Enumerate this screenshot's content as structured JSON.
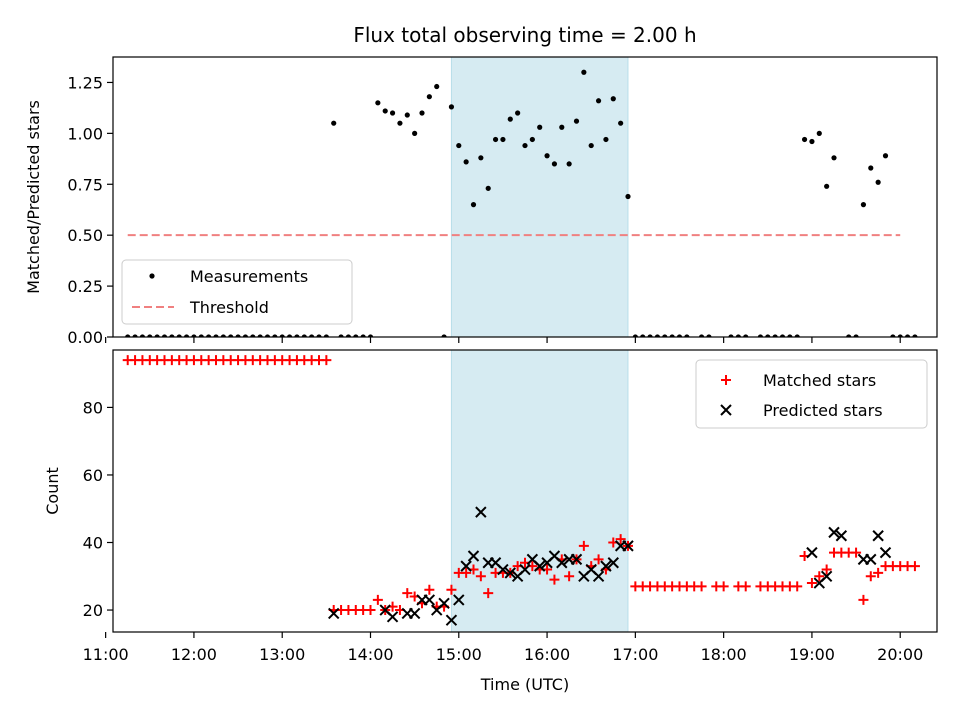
{
  "chart_data": [
    {
      "type": "scatter",
      "title": "Flux total observing time = 2.00 h",
      "xlabel": "",
      "ylabel": "Matched/Predicted stars",
      "xlim": [
        "11:05",
        "20:25"
      ],
      "ylim": [
        0,
        1.375
      ],
      "yticks": [
        0.0,
        0.25,
        0.5,
        0.75,
        1.0,
        1.25
      ],
      "ytick_labels": [
        "0.00",
        "0.25",
        "0.50",
        "0.75",
        "1.00",
        "1.25"
      ],
      "grid": false,
      "legend": "lower-left",
      "shaded_region": {
        "start": "14:55",
        "end": "16:55",
        "color": "#add8e6"
      },
      "series": [
        {
          "name": "Measurements",
          "kind": "points",
          "color": "#000000",
          "points": [
            [
              "11:15",
              0
            ],
            [
              "11:20",
              0
            ],
            [
              "11:25",
              0
            ],
            [
              "11:30",
              0
            ],
            [
              "11:35",
              0
            ],
            [
              "11:40",
              0
            ],
            [
              "11:45",
              0
            ],
            [
              "11:50",
              0
            ],
            [
              "11:55",
              0
            ],
            [
              "12:00",
              0
            ],
            [
              "12:05",
              0
            ],
            [
              "12:10",
              0
            ],
            [
              "12:15",
              0
            ],
            [
              "12:20",
              0
            ],
            [
              "12:25",
              0
            ],
            [
              "12:30",
              0
            ],
            [
              "12:35",
              0
            ],
            [
              "12:40",
              0
            ],
            [
              "12:45",
              0
            ],
            [
              "12:50",
              0
            ],
            [
              "12:55",
              0
            ],
            [
              "13:00",
              0
            ],
            [
              "13:05",
              0
            ],
            [
              "13:10",
              0
            ],
            [
              "13:15",
              0
            ],
            [
              "13:20",
              0
            ],
            [
              "13:25",
              0
            ],
            [
              "13:30",
              0
            ],
            [
              "13:35",
              1.05
            ],
            [
              "13:40",
              0
            ],
            [
              "13:45",
              0
            ],
            [
              "13:50",
              0
            ],
            [
              "13:55",
              0
            ],
            [
              "14:00",
              0
            ],
            [
              "14:05",
              1.15
            ],
            [
              "14:10",
              1.11
            ],
            [
              "14:15",
              1.1
            ],
            [
              "14:20",
              1.05
            ],
            [
              "14:25",
              1.09
            ],
            [
              "14:30",
              1.0
            ],
            [
              "14:35",
              1.1
            ],
            [
              "14:40",
              1.18
            ],
            [
              "14:45",
              1.23
            ],
            [
              "14:50",
              0
            ],
            [
              "14:55",
              1.13
            ],
            [
              "15:00",
              0.94
            ],
            [
              "15:05",
              0.86
            ],
            [
              "15:10",
              0.65
            ],
            [
              "15:15",
              0.88
            ],
            [
              "15:20",
              0.73
            ],
            [
              "15:25",
              0.97
            ],
            [
              "15:30",
              0.97
            ],
            [
              "15:35",
              1.07
            ],
            [
              "15:40",
              1.1
            ],
            [
              "15:45",
              0.94
            ],
            [
              "15:50",
              0.97
            ],
            [
              "15:55",
              1.03
            ],
            [
              "16:00",
              0.89
            ],
            [
              "16:05",
              0.85
            ],
            [
              "16:10",
              1.03
            ],
            [
              "16:15",
              0.85
            ],
            [
              "16:20",
              1.06
            ],
            [
              "16:25",
              1.3
            ],
            [
              "16:30",
              0.94
            ],
            [
              "16:35",
              1.16
            ],
            [
              "16:40",
              0.97
            ],
            [
              "16:45",
              1.17
            ],
            [
              "16:50",
              1.05
            ],
            [
              "16:55",
              0.69
            ],
            [
              "17:00",
              0
            ],
            [
              "17:05",
              0
            ],
            [
              "17:10",
              0
            ],
            [
              "17:15",
              0
            ],
            [
              "17:20",
              0
            ],
            [
              "17:25",
              0
            ],
            [
              "17:30",
              0
            ],
            [
              "17:35",
              0
            ],
            [
              "17:45",
              0
            ],
            [
              "17:50",
              0
            ],
            [
              "18:05",
              0
            ],
            [
              "18:10",
              0
            ],
            [
              "18:15",
              0
            ],
            [
              "18:25",
              0
            ],
            [
              "18:30",
              0
            ],
            [
              "18:35",
              0
            ],
            [
              "18:40",
              0
            ],
            [
              "18:45",
              0
            ],
            [
              "18:50",
              0
            ],
            [
              "18:55",
              0.97
            ],
            [
              "19:00",
              0.96
            ],
            [
              "19:05",
              1.0
            ],
            [
              "19:10",
              0.74
            ],
            [
              "19:15",
              0.88
            ],
            [
              "19:25",
              0
            ],
            [
              "19:30",
              0
            ],
            [
              "19:35",
              0.65
            ],
            [
              "19:40",
              0.83
            ],
            [
              "19:45",
              0.76
            ],
            [
              "19:50",
              0.89
            ],
            [
              "19:55",
              0
            ],
            [
              "20:00",
              0
            ],
            [
              "20:05",
              0
            ],
            [
              "20:10",
              0
            ]
          ]
        },
        {
          "name": "Threshold",
          "kind": "dashed-line",
          "color": "#f08080",
          "points": [
            [
              "11:15",
              0.5
            ],
            [
              "20:00",
              0.5
            ]
          ]
        }
      ]
    },
    {
      "type": "scatter",
      "title": "",
      "xlabel": "Time (UTC)",
      "ylabel": "Count",
      "xlim": [
        "11:05",
        "20:25"
      ],
      "ylim": [
        13.5,
        97
      ],
      "yticks": [
        20,
        40,
        60,
        80
      ],
      "ytick_labels": [
        "20",
        "40",
        "60",
        "80"
      ],
      "xticks": [
        "11:00",
        "12:00",
        "13:00",
        "14:00",
        "15:00",
        "16:00",
        "17:00",
        "18:00",
        "19:00",
        "20:00"
      ],
      "xtick_labels": [
        "11:00",
        "12:00",
        "13:00",
        "14:00",
        "15:00",
        "16:00",
        "17:00",
        "18:00",
        "19:00",
        "20:00"
      ],
      "grid": false,
      "legend": "upper-right",
      "shaded_region": {
        "start": "14:55",
        "end": "16:55",
        "color": "#add8e6"
      },
      "series": [
        {
          "name": "Matched stars",
          "kind": "plus",
          "color": "#ff0000",
          "points": [
            [
              "11:15",
              94
            ],
            [
              "11:20",
              94
            ],
            [
              "11:25",
              94
            ],
            [
              "11:30",
              94
            ],
            [
              "11:35",
              94
            ],
            [
              "11:40",
              94
            ],
            [
              "11:45",
              94
            ],
            [
              "11:50",
              94
            ],
            [
              "11:55",
              94
            ],
            [
              "12:00",
              94
            ],
            [
              "12:05",
              94
            ],
            [
              "12:10",
              94
            ],
            [
              "12:15",
              94
            ],
            [
              "12:20",
              94
            ],
            [
              "12:25",
              94
            ],
            [
              "12:30",
              94
            ],
            [
              "12:35",
              94
            ],
            [
              "12:40",
              94
            ],
            [
              "12:45",
              94
            ],
            [
              "12:50",
              94
            ],
            [
              "12:55",
              94
            ],
            [
              "13:00",
              94
            ],
            [
              "13:05",
              94
            ],
            [
              "13:10",
              94
            ],
            [
              "13:15",
              94
            ],
            [
              "13:20",
              94
            ],
            [
              "13:25",
              94
            ],
            [
              "13:30",
              94
            ],
            [
              "13:35",
              20
            ],
            [
              "13:40",
              20
            ],
            [
              "13:45",
              20
            ],
            [
              "13:50",
              20
            ],
            [
              "13:55",
              20
            ],
            [
              "14:00",
              20
            ],
            [
              "14:05",
              23
            ],
            [
              "14:10",
              20
            ],
            [
              "14:15",
              21
            ],
            [
              "14:20",
              20
            ],
            [
              "14:25",
              25
            ],
            [
              "14:30",
              24
            ],
            [
              "14:35",
              22
            ],
            [
              "14:40",
              26
            ],
            [
              "14:45",
              21
            ],
            [
              "14:50",
              21
            ],
            [
              "14:55",
              26
            ],
            [
              "15:00",
              31
            ],
            [
              "15:05",
              31
            ],
            [
              "15:10",
              32
            ],
            [
              "15:15",
              30
            ],
            [
              "15:20",
              25
            ],
            [
              "15:25",
              31
            ],
            [
              "15:30",
              31
            ],
            [
              "15:35",
              31
            ],
            [
              "15:40",
              33
            ],
            [
              "15:45",
              34
            ],
            [
              "15:50",
              33
            ],
            [
              "15:55",
              32
            ],
            [
              "16:00",
              32
            ],
            [
              "16:05",
              29
            ],
            [
              "16:10",
              35
            ],
            [
              "16:15",
              30
            ],
            [
              "16:20",
              35
            ],
            [
              "16:25",
              39
            ],
            [
              "16:30",
              33
            ],
            [
              "16:35",
              35
            ],
            [
              "16:40",
              32
            ],
            [
              "16:45",
              40
            ],
            [
              "16:50",
              41
            ],
            [
              "16:55",
              39
            ],
            [
              "17:00",
              27
            ],
            [
              "17:05",
              27
            ],
            [
              "17:10",
              27
            ],
            [
              "17:15",
              27
            ],
            [
              "17:20",
              27
            ],
            [
              "17:25",
              27
            ],
            [
              "17:30",
              27
            ],
            [
              "17:35",
              27
            ],
            [
              "17:40",
              27
            ],
            [
              "17:45",
              27
            ],
            [
              "17:55",
              27
            ],
            [
              "18:00",
              27
            ],
            [
              "18:10",
              27
            ],
            [
              "18:15",
              27
            ],
            [
              "18:25",
              27
            ],
            [
              "18:30",
              27
            ],
            [
              "18:35",
              27
            ],
            [
              "18:40",
              27
            ],
            [
              "18:45",
              27
            ],
            [
              "18:50",
              27
            ],
            [
              "18:55",
              36
            ],
            [
              "19:00",
              28
            ],
            [
              "19:05",
              30
            ],
            [
              "19:10",
              32
            ],
            [
              "19:15",
              37
            ],
            [
              "19:20",
              37
            ],
            [
              "19:25",
              37
            ],
            [
              "19:30",
              37
            ],
            [
              "19:35",
              23
            ],
            [
              "19:40",
              30
            ],
            [
              "19:45",
              31
            ],
            [
              "19:50",
              33
            ],
            [
              "19:55",
              33
            ],
            [
              "20:00",
              33
            ],
            [
              "20:05",
              33
            ],
            [
              "20:10",
              33
            ]
          ]
        },
        {
          "name": "Predicted stars",
          "kind": "x",
          "color": "#000000",
          "points": [
            [
              "13:35",
              19
            ],
            [
              "14:10",
              20
            ],
            [
              "14:15",
              18
            ],
            [
              "14:25",
              19
            ],
            [
              "14:30",
              19
            ],
            [
              "14:35",
              23
            ],
            [
              "14:40",
              23
            ],
            [
              "14:45",
              20
            ],
            [
              "14:50",
              22
            ],
            [
              "14:55",
              17
            ],
            [
              "15:00",
              23
            ],
            [
              "15:05",
              33
            ],
            [
              "15:10",
              36
            ],
            [
              "15:15",
              49
            ],
            [
              "15:20",
              34
            ],
            [
              "15:25",
              34
            ],
            [
              "15:30",
              32
            ],
            [
              "15:35",
              31
            ],
            [
              "15:40",
              30
            ],
            [
              "15:45",
              32
            ],
            [
              "15:50",
              35
            ],
            [
              "15:55",
              33
            ],
            [
              "16:00",
              34
            ],
            [
              "16:05",
              36
            ],
            [
              "16:10",
              34
            ],
            [
              "16:15",
              35
            ],
            [
              "16:20",
              35
            ],
            [
              "16:25",
              30
            ],
            [
              "16:30",
              32
            ],
            [
              "16:35",
              30
            ],
            [
              "16:40",
              33
            ],
            [
              "16:45",
              34
            ],
            [
              "16:50",
              39
            ],
            [
              "16:55",
              39
            ],
            [
              "19:00",
              37
            ],
            [
              "19:05",
              28
            ],
            [
              "19:10",
              30
            ],
            [
              "19:15",
              43
            ],
            [
              "19:20",
              42
            ],
            [
              "19:35",
              35
            ],
            [
              "19:40",
              35
            ],
            [
              "19:45",
              42
            ],
            [
              "19:50",
              37
            ]
          ]
        }
      ]
    }
  ]
}
